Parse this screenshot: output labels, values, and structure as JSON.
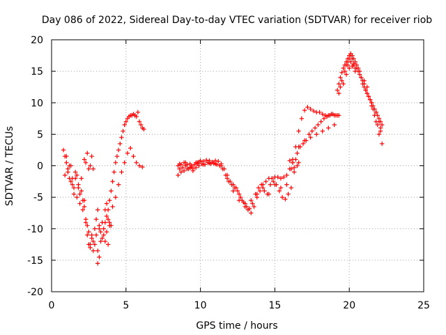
{
  "chart_data": {
    "type": "scatter",
    "title": "Day 086 of 2022, Sidereal Day-to-day VTEC variation (SDTVAR) for receiver riob",
    "xlabel": "GPS time / hours",
    "ylabel": "SDTVAR / TECUs",
    "xlim": [
      0,
      25
    ],
    "ylim": [
      -20,
      20
    ],
    "xticks": [
      0,
      5,
      10,
      15,
      20,
      25
    ],
    "yticks": [
      -20,
      -15,
      -10,
      -5,
      0,
      5,
      10,
      15,
      20
    ],
    "grid": true,
    "marker": "+",
    "color": "#ff0000",
    "series": [
      {
        "x": [
          0.8,
          0.9,
          1.0,
          1.1,
          1.2,
          1.3,
          1.4,
          1.5,
          1.6,
          1.7,
          1.8,
          1.9,
          2.0,
          2.1,
          2.2,
          2.3,
          2.4,
          2.5,
          2.6,
          2.7,
          2.8,
          2.9,
          3.0,
          3.1,
          3.2,
          3.3,
          3.4,
          3.5,
          3.6,
          3.7,
          3.8,
          3.9,
          4.0,
          4.1,
          4.2,
          4.3,
          4.4,
          4.5,
          4.6,
          4.7,
          4.8,
          4.9,
          5.0,
          5.1,
          5.2,
          5.3,
          5.4,
          5.5,
          5.6,
          5.7,
          5.8,
          5.9,
          6.0,
          6.1,
          6.2,
          0.9,
          1.1,
          1.3,
          1.5,
          1.7,
          1.9,
          2.1,
          2.3,
          2.5,
          2.7,
          2.9,
          3.1,
          3.3,
          3.5,
          3.7,
          3.9,
          4.1,
          4.3,
          4.5,
          4.7,
          4.9,
          5.1,
          5.3,
          5.5,
          5.7,
          5.9,
          6.1,
          1.0,
          1.2,
          1.4,
          1.6,
          1.8,
          2.0,
          2.2,
          2.4,
          2.6,
          2.8,
          3.0,
          3.2,
          3.4,
          3.6,
          3.8,
          4.0,
          2.2,
          2.3,
          2.4,
          2.5,
          2.6,
          2.7,
          2.8,
          3.1,
          3.2,
          3.6,
          3.7,
          3.8,
          3.9
        ],
        "y": [
          2.5,
          1.5,
          0.5,
          -1.0,
          -2.0,
          0.0,
          -3.0,
          -4.5,
          -2.0,
          -5.0,
          -3.5,
          -6.0,
          -4.0,
          -7.0,
          -5.5,
          -9.0,
          -11.0,
          -12.5,
          -13.0,
          -11.5,
          -12.0,
          -10.0,
          -8.5,
          -7.0,
          -9.5,
          -10.5,
          -11.5,
          -10.0,
          -9.0,
          -8.0,
          -7.0,
          -5.5,
          -4.0,
          -2.5,
          -1.0,
          0.5,
          1.5,
          2.5,
          3.5,
          4.5,
          5.5,
          6.5,
          7.0,
          7.5,
          7.8,
          8.0,
          8.0,
          8.2,
          8.0,
          7.8,
          8.5,
          7.0,
          6.5,
          6.0,
          5.8,
          -1.5,
          -0.5,
          -2.5,
          -3.5,
          -1.5,
          -4.5,
          -5.5,
          -8.5,
          -10.5,
          -11.0,
          -12.5,
          -13.5,
          -12.0,
          -11.0,
          -10.5,
          -9.0,
          -6.5,
          -5.0,
          -3.0,
          -1.0,
          0.5,
          2.0,
          2.8,
          1.5,
          0.5,
          0.0,
          -0.2,
          1.5,
          0.0,
          -2.0,
          -1.0,
          -3.0,
          -2.0,
          -6.5,
          -9.5,
          -12.5,
          -13.5,
          -11.0,
          -10.0,
          -9.0,
          -12.0,
          -12.5,
          -9.5,
          1.0,
          0.5,
          2.0,
          -0.5,
          0.0,
          1.5,
          -0.5,
          -15.5,
          -14.5,
          -7.0,
          -6.0,
          -8.5,
          -9.5
        ]
      },
      {
        "x": [
          8.5,
          8.6,
          8.7,
          8.8,
          8.9,
          9.0,
          9.1,
          9.2,
          9.3,
          9.4,
          9.5,
          9.6,
          9.7,
          9.8,
          9.9,
          10.0,
          10.2,
          10.4,
          10.6,
          10.8,
          11.0,
          11.2,
          11.4,
          11.6,
          11.8,
          12.0,
          12.2,
          12.4,
          12.6,
          12.8,
          13.0,
          13.2,
          13.4,
          13.6,
          13.8,
          14.0,
          14.2,
          14.4,
          14.6,
          14.8,
          15.0,
          15.2,
          15.4,
          15.6,
          15.8,
          16.0,
          16.2,
          16.4,
          16.6,
          16.8,
          17.0,
          17.2,
          17.4,
          17.6,
          17.8,
          18.0,
          18.2,
          18.4,
          18.6,
          18.8,
          19.0,
          19.2,
          8.5,
          8.7,
          8.9,
          9.1,
          9.3,
          9.5,
          9.7,
          9.9,
          10.1,
          10.3,
          10.5,
          10.7,
          10.9,
          11.1,
          11.3,
          11.5,
          11.7,
          11.9,
          12.1,
          12.3,
          12.5,
          12.7,
          12.9,
          13.1,
          13.3,
          13.5,
          13.7,
          13.9,
          14.1,
          14.3,
          14.5,
          14.7,
          14.9,
          15.1,
          15.3,
          15.5,
          15.7,
          15.9,
          16.1,
          16.3,
          16.5,
          16.7,
          16.9,
          17.1,
          17.3,
          17.5,
          17.7,
          17.9,
          18.1,
          18.3,
          18.5,
          18.7,
          18.9,
          19.1,
          19.3,
          8.6,
          9.0,
          9.4,
          9.8,
          10.2,
          10.6,
          11.0,
          11.4,
          11.8,
          12.2,
          12.6,
          13.0,
          13.4,
          13.8,
          14.2,
          14.6,
          15.0,
          15.4,
          15.8,
          16.2,
          16.6,
          17.0,
          17.4,
          17.8,
          18.2,
          18.6,
          19.0,
          16.0,
          16.1,
          16.2,
          16.3,
          16.4,
          16.5,
          16.6
        ],
        "y": [
          0.0,
          -0.5,
          0.2,
          -0.3,
          0.5,
          0.0,
          0.2,
          -0.5,
          0.3,
          0.0,
          -0.8,
          0.2,
          0.5,
          0.3,
          0.6,
          0.8,
          0.7,
          0.9,
          0.8,
          0.6,
          0.8,
          0.7,
          0.3,
          -0.5,
          -1.5,
          -2.5,
          -3.0,
          -3.5,
          -4.5,
          -5.5,
          -6.5,
          -7.0,
          -7.5,
          -6.5,
          -5.0,
          -4.0,
          -3.0,
          -2.5,
          -2.0,
          -2.0,
          -1.8,
          -1.8,
          -2.0,
          -1.8,
          -1.5,
          -0.5,
          1.0,
          3.0,
          5.5,
          7.5,
          8.8,
          9.3,
          9.0,
          8.7,
          8.5,
          8.5,
          8.2,
          8.0,
          8.0,
          8.2,
          8.0,
          8.0,
          -1.5,
          -1.0,
          -0.8,
          -0.5,
          -0.3,
          -0.5,
          -0.3,
          0.0,
          0.3,
          0.2,
          0.5,
          0.3,
          0.4,
          0.2,
          0.0,
          -0.5,
          -1.5,
          -2.5,
          -3.0,
          -3.5,
          -4.0,
          -5.0,
          -5.8,
          -6.5,
          -6.8,
          -6.0,
          -4.5,
          -3.5,
          -3.0,
          -4.0,
          -4.5,
          -3.0,
          -2.5,
          -3.0,
          -4.0,
          -5.0,
          -5.3,
          -4.5,
          -3.5,
          -1.0,
          2.0,
          3.0,
          3.5,
          4.0,
          5.0,
          5.5,
          6.0,
          6.5,
          7.0,
          7.5,
          7.8,
          8.0,
          8.2,
          8.0,
          8.0,
          0.3,
          0.5,
          -0.2,
          0.5,
          0.2,
          0.4,
          0.3,
          0.0,
          -2.0,
          -4.0,
          -5.5,
          -6.0,
          -5.5,
          -4.5,
          -3.5,
          -4.5,
          -3.0,
          -3.5,
          -3.0,
          0.5,
          3.0,
          4.0,
          4.5,
          5.0,
          5.5,
          6.0,
          6.5,
          0.8,
          -0.5,
          0.5,
          -0.3,
          1.0,
          0.0,
          0.5
        ]
      },
      {
        "x": [
          19.2,
          19.3,
          19.4,
          19.5,
          19.6,
          19.7,
          19.8,
          19.9,
          20.0,
          20.1,
          20.2,
          20.3,
          20.4,
          20.5,
          20.6,
          20.7,
          20.8,
          20.9,
          21.0,
          21.1,
          21.2,
          21.3,
          21.4,
          21.5,
          21.6,
          21.7,
          21.8,
          21.9,
          22.0,
          22.1,
          22.2,
          19.3,
          19.5,
          19.7,
          19.9,
          20.1,
          20.3,
          20.5,
          20.7,
          20.9,
          21.1,
          21.3,
          21.5,
          21.7,
          21.9,
          22.1,
          19.4,
          19.6,
          19.8,
          20.0,
          20.2,
          20.4,
          20.6,
          20.8,
          21.0,
          21.2,
          21.4,
          21.6,
          21.8,
          22.0,
          22.2,
          19.8,
          19.9,
          20.0,
          20.1,
          20.2,
          20.3,
          20.4,
          21.0,
          21.2,
          21.5,
          21.8,
          22.0,
          22.1
        ],
        "y": [
          12.0,
          13.0,
          14.0,
          14.8,
          15.5,
          16.0,
          16.5,
          17.0,
          17.5,
          17.8,
          17.5,
          17.0,
          16.5,
          16.0,
          15.5,
          15.0,
          14.0,
          13.0,
          12.5,
          12.0,
          11.5,
          11.0,
          10.5,
          10.0,
          9.5,
          9.0,
          8.5,
          8.0,
          7.5,
          7.0,
          6.5,
          11.5,
          13.5,
          15.0,
          16.0,
          16.5,
          16.2,
          15.5,
          14.5,
          13.5,
          12.0,
          11.0,
          9.5,
          8.0,
          6.5,
          5.5,
          12.5,
          13.0,
          14.5,
          15.5,
          15.8,
          15.5,
          15.0,
          14.0,
          13.0,
          11.5,
          10.5,
          9.0,
          7.0,
          5.0,
          3.5,
          16.0,
          16.5,
          17.0,
          17.5,
          17.0,
          16.0,
          15.0,
          13.5,
          12.5,
          10.0,
          8.5,
          7.0,
          6.0
        ]
      }
    ]
  }
}
